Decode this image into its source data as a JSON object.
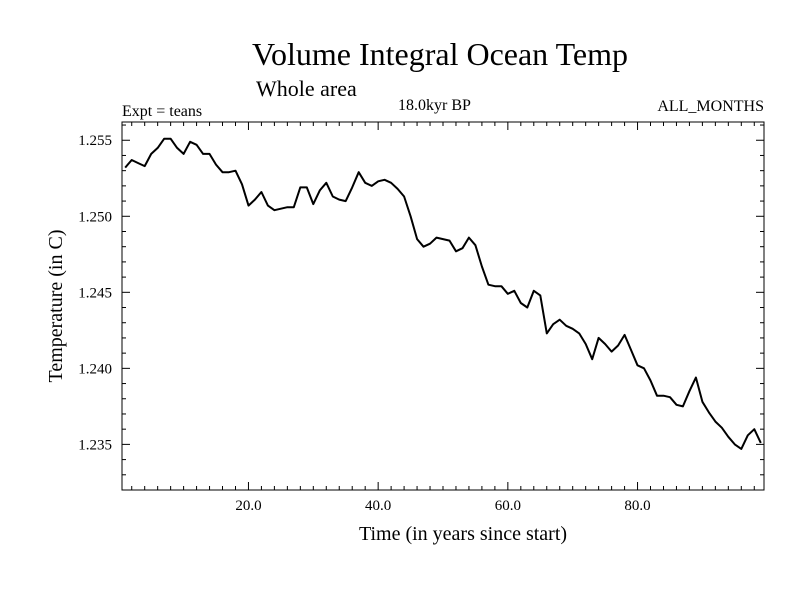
{
  "header": {
    "title": "Volume Integral Ocean Temp",
    "subtitle": "Whole area",
    "experiment": "Expt = teans",
    "era": "18.0kyr BP",
    "months": "ALL_MONTHS"
  },
  "chart_data": {
    "type": "line",
    "title": "Volume Integral Ocean Temp",
    "subtitle": "Whole area",
    "xlabel": "Time (in years since start)",
    "ylabel": "Temperature (in C)",
    "xlim": [
      0.5,
      99.5
    ],
    "ylim": [
      1.232,
      1.2562
    ],
    "xticks": [
      20,
      40,
      60,
      80
    ],
    "xtick_labels": [
      "20.0",
      "40.0",
      "60.0",
      "80.0"
    ],
    "yticks": [
      1.235,
      1.24,
      1.245,
      1.25,
      1.255
    ],
    "ytick_labels": [
      "1.235",
      "1.240",
      "1.245",
      "1.250",
      "1.255"
    ],
    "series": [
      {
        "name": "Volume Integral Ocean Temp",
        "color": "#000000",
        "x": [
          1,
          2,
          3,
          4,
          5,
          6,
          7,
          8,
          9,
          10,
          11,
          12,
          13,
          14,
          15,
          16,
          17,
          18,
          19,
          20,
          21,
          22,
          23,
          24,
          25,
          26,
          27,
          28,
          29,
          30,
          31,
          32,
          33,
          34,
          35,
          36,
          37,
          38,
          39,
          40,
          41,
          42,
          43,
          44,
          45,
          46,
          47,
          48,
          49,
          50,
          51,
          52,
          53,
          54,
          55,
          56,
          57,
          58,
          59,
          60,
          61,
          62,
          63,
          64,
          65,
          66,
          67,
          68,
          69,
          70,
          71,
          72,
          73,
          74,
          75,
          76,
          77,
          78,
          79,
          80,
          81,
          82,
          83,
          84,
          85,
          86,
          87,
          88,
          89,
          90,
          91,
          92,
          93,
          94,
          95,
          96,
          97,
          98,
          99
        ],
        "values": [
          1.2532,
          1.2537,
          1.2535,
          1.2533,
          1.2541,
          1.2545,
          1.2551,
          1.2551,
          1.2545,
          1.2541,
          1.2549,
          1.2547,
          1.2541,
          1.2541,
          1.2534,
          1.2529,
          1.2529,
          1.253,
          1.2521,
          1.2507,
          1.2511,
          1.2516,
          1.2507,
          1.2504,
          1.2505,
          1.2506,
          1.2506,
          1.2519,
          1.2519,
          1.2508,
          1.2517,
          1.2522,
          1.2513,
          1.2511,
          1.251,
          1.2519,
          1.2529,
          1.2522,
          1.252,
          1.2523,
          1.2524,
          1.2522,
          1.2518,
          1.2513,
          1.25,
          1.2485,
          1.248,
          1.2482,
          1.2486,
          1.2485,
          1.2484,
          1.2477,
          1.2479,
          1.2486,
          1.2481,
          1.2467,
          1.2455,
          1.2454,
          1.2454,
          1.2449,
          1.2451,
          1.2443,
          1.244,
          1.2451,
          1.2448,
          1.2423,
          1.2429,
          1.2432,
          1.2428,
          1.2426,
          1.2423,
          1.2416,
          1.2406,
          1.242,
          1.2416,
          1.2411,
          1.2415,
          1.2422,
          1.2412,
          1.2402,
          1.24,
          1.2392,
          1.2382,
          1.2382,
          1.2381,
          1.2376,
          1.2375,
          1.2385,
          1.2394,
          1.2378,
          1.2371,
          1.2365,
          1.2361,
          1.2355,
          1.235,
          1.2347,
          1.2356,
          1.236,
          1.2351
        ]
      }
    ]
  }
}
